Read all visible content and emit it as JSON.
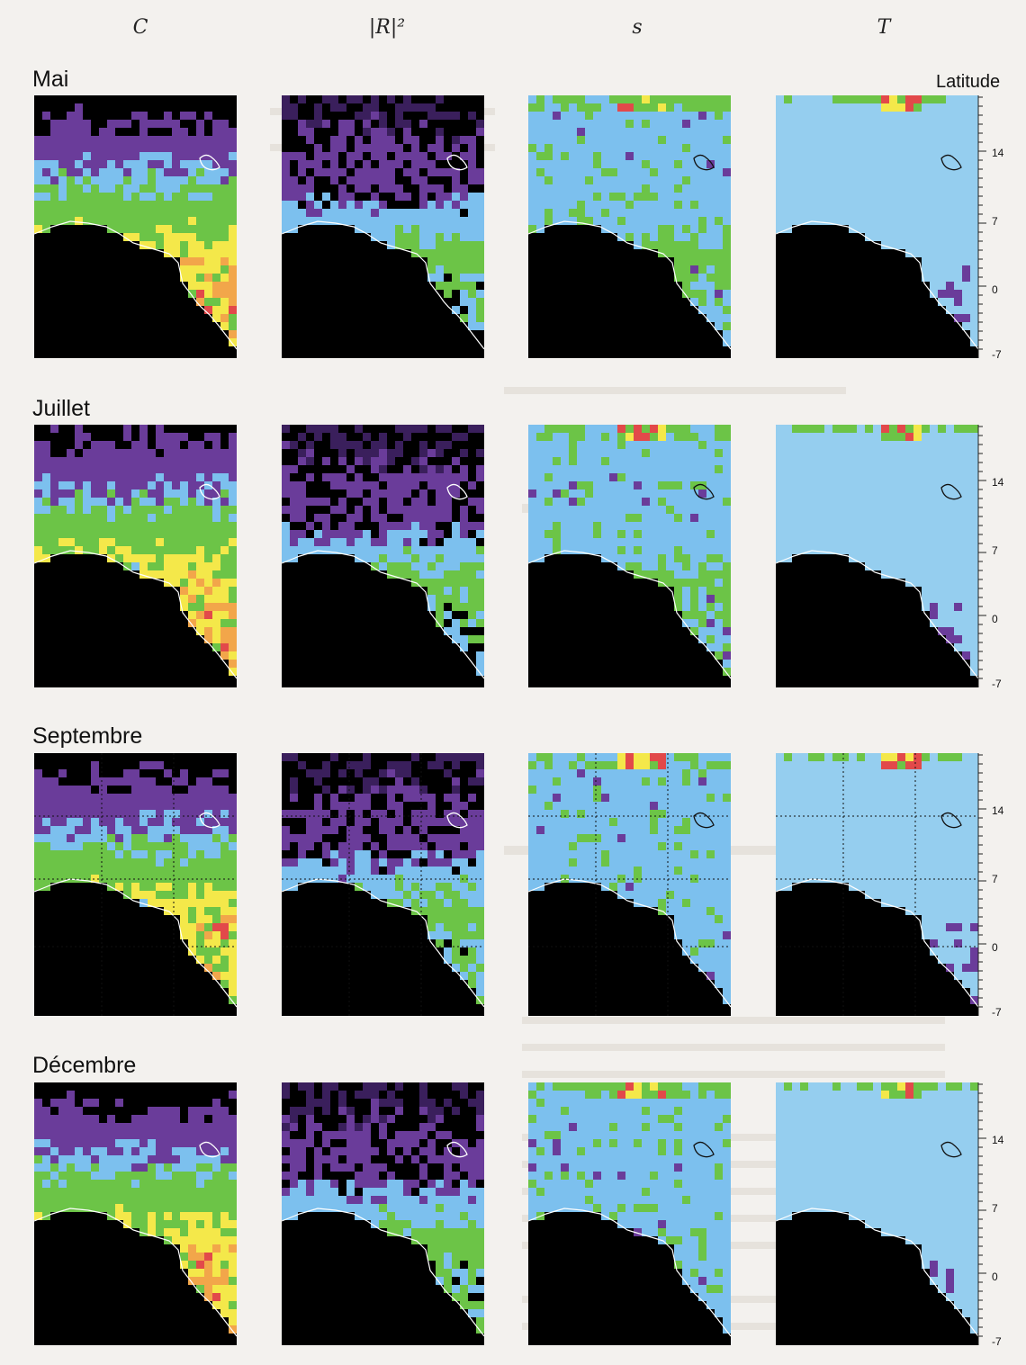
{
  "columns": [
    "C",
    "|R|²",
    "s",
    "T"
  ],
  "axis": {
    "label": "Latitude",
    "ticks": [
      "14",
      "7",
      "0",
      "-7"
    ]
  },
  "rows": [
    {
      "month": "Mai"
    },
    {
      "month": "Juillet"
    },
    {
      "month": "Septembre"
    },
    {
      "month": "Décembre"
    }
  ],
  "colors": {
    "black": "#000000",
    "purple": "#6a3c9a",
    "dark_purple": "#3a1f5c",
    "blue": "#7cc0ee",
    "light_blue": "#95ceef",
    "green": "#6cc447",
    "yellow": "#f4e84a",
    "orange": "#f2a64a",
    "red": "#e2494a"
  },
  "panel_palettes": {
    "C": "coherence",
    "|R|²": "backscatter",
    "s": "roughness",
    "T": "temperature"
  }
}
